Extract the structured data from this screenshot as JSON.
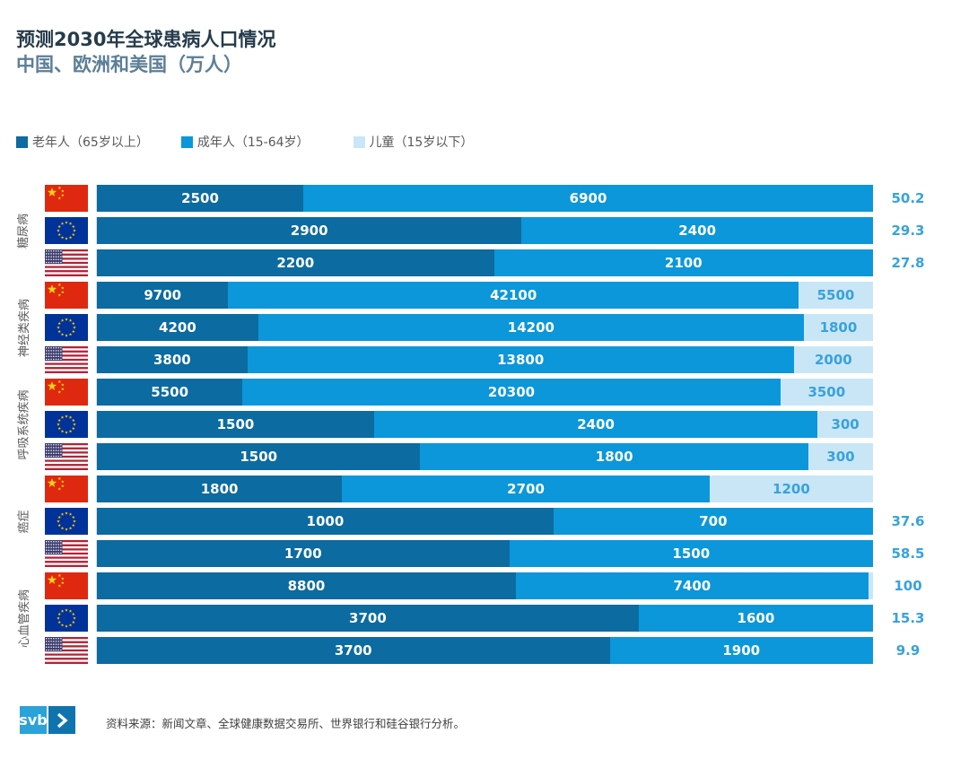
{
  "title": {
    "line1": "预测2030年全球患病人口情况",
    "line2": "中国、欧洲和美国（万人）"
  },
  "legend": {
    "items": [
      {
        "label": "老年人（65岁以上）",
        "color": "#0c6ba0",
        "key": "elderly"
      },
      {
        "label": "成年人（15-64岁）",
        "color": "#0b97d9",
        "key": "adults"
      },
      {
        "label": "儿童（15岁以下）",
        "color": "#c9e6f7",
        "key": "children"
      }
    ]
  },
  "chart_data": {
    "type": "bar",
    "variant": "horizontal-100%-stacked",
    "unit": "万人",
    "title": "预测2030年全球患病人口情况",
    "subtitle": "中国、欧洲和美国（万人）",
    "series_names": [
      "老年人（65岁以上）",
      "成年人（15-64岁）",
      "儿童（15岁以下）"
    ],
    "colors": {
      "elderly": "#0c6ba0",
      "adults": "#0b97d9",
      "children": "#c9e6f7",
      "value_label_on_dark": "#ffffff",
      "value_label_light": "#38a2dc"
    },
    "legend_position": "top",
    "groups": [
      {
        "label": "糖尿病",
        "rows": [
          {
            "country": "中国",
            "flag": "cn",
            "elderly": 2500,
            "adults": 6900,
            "children": 50.2,
            "children_outside": true,
            "children_sliver": false
          },
          {
            "country": "欧洲",
            "flag": "eu",
            "elderly": 2900,
            "adults": 2400,
            "children": 29.3,
            "children_outside": true,
            "children_sliver": false
          },
          {
            "country": "美国",
            "flag": "us",
            "elderly": 2200,
            "adults": 2100,
            "children": 27.8,
            "children_outside": true,
            "children_sliver": false
          }
        ]
      },
      {
        "label": "神经类疾病",
        "rows": [
          {
            "country": "中国",
            "flag": "cn",
            "elderly": 9700,
            "adults": 42100,
            "children": 5500,
            "children_outside": false,
            "children_sliver": false
          },
          {
            "country": "欧洲",
            "flag": "eu",
            "elderly": 4200,
            "adults": 14200,
            "children": 1800,
            "children_outside": false,
            "children_sliver": false
          },
          {
            "country": "美国",
            "flag": "us",
            "elderly": 3800,
            "adults": 13800,
            "children": 2000,
            "children_outside": false,
            "children_sliver": false
          }
        ]
      },
      {
        "label": "呼吸系统疾病",
        "rows": [
          {
            "country": "中国",
            "flag": "cn",
            "elderly": 5500,
            "adults": 20300,
            "children": 3500,
            "children_outside": false,
            "children_sliver": false
          },
          {
            "country": "欧洲",
            "flag": "eu",
            "elderly": 1500,
            "adults": 2400,
            "children": 300,
            "children_outside": false,
            "children_sliver": false
          },
          {
            "country": "美国",
            "flag": "us",
            "elderly": 1500,
            "adults": 1800,
            "children": 300,
            "children_outside": false,
            "children_sliver": false
          }
        ]
      },
      {
        "label": "癌症",
        "rows": [
          {
            "country": "中国",
            "flag": "cn",
            "elderly": 1800,
            "adults": 2700,
            "children": 1200,
            "children_outside": false,
            "children_sliver": false
          },
          {
            "country": "欧洲",
            "flag": "eu",
            "elderly": 1000,
            "adults": 700,
            "children": 37.6,
            "children_outside": true,
            "children_sliver": false
          },
          {
            "country": "美国",
            "flag": "us",
            "elderly": 1700,
            "adults": 1500,
            "children": 58.5,
            "children_outside": true,
            "children_sliver": false
          }
        ]
      },
      {
        "label": "心血管疾病",
        "rows": [
          {
            "country": "中国",
            "flag": "cn",
            "elderly": 8800,
            "adults": 7400,
            "children": 100,
            "children_outside": true,
            "children_sliver": true
          },
          {
            "country": "欧洲",
            "flag": "eu",
            "elderly": 3700,
            "adults": 1600,
            "children": 15.3,
            "children_outside": true,
            "children_sliver": false
          },
          {
            "country": "美国",
            "flag": "us",
            "elderly": 3700,
            "adults": 1900,
            "children": 9.9,
            "children_outside": true,
            "children_sliver": false
          }
        ]
      }
    ]
  },
  "footer": {
    "logo_text": "svb",
    "source": "资料来源：新闻文章、全球健康数据交易所、世界银行和硅谷银行分析。"
  }
}
